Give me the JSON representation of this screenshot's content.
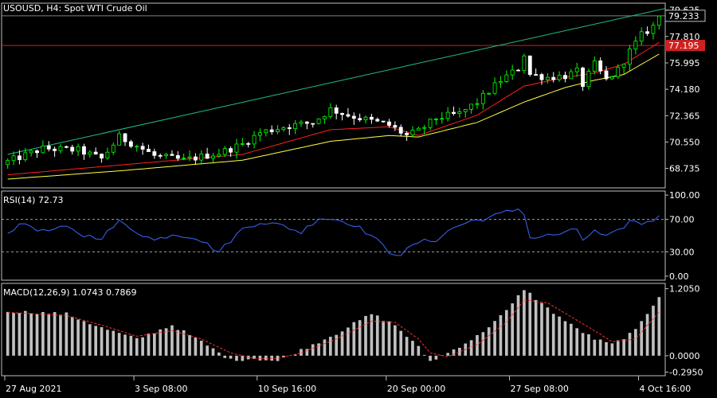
{
  "header": {
    "symbol": "USOUSD",
    "timeframe": "H4",
    "description": "Spot WTI Crude Oil",
    "label": "USOUSD, H4:  Spot WTI Crude Oil"
  },
  "rsi_panel": {
    "label": "RSI(14) 72.73"
  },
  "macd_panel": {
    "label": "MACD(12,26,9) 1.0743 0.7869"
  },
  "colors": {
    "background": "#000000",
    "bull_candle": "#00ff00",
    "bear_candle": "#ffffff",
    "ma_fast": "#ff2020",
    "ma_slow": "#ffff40",
    "trendline": "#20c080",
    "horizontal_line": "#d02020",
    "rsi_line": "#3a66ff",
    "macd_hist": "#c0c0c0",
    "macd_signal": "#ff3030",
    "grid_frame": "#c0c0c0"
  },
  "chart_data": [
    {
      "type": "candlestick",
      "title": "USOUSD, H4:  Spot WTI Crude Oil",
      "y_ticks": [
        "79.625",
        "77.810",
        "75.995",
        "74.180",
        "72.365",
        "70.550",
        "68.735"
      ],
      "ylim": [
        67.4,
        80.1
      ],
      "current_price": "79.233",
      "horizontal_level": "77.195",
      "x_labels": [
        "27 Aug 2021",
        "3 Sep 08:00",
        "10 Sep 16:00",
        "20 Sep 00:00",
        "27 Sep 08:00",
        "4 Oct 16:00"
      ],
      "bars": 112,
      "close_path": [
        [
          0,
          69.2
        ],
        [
          6,
          70.1
        ],
        [
          12,
          70.0
        ],
        [
          16,
          69.4
        ],
        [
          19,
          70.9
        ],
        [
          22,
          70.3
        ],
        [
          25,
          69.6
        ],
        [
          30,
          69.3
        ],
        [
          36,
          69.8
        ],
        [
          40,
          70.4
        ],
        [
          43,
          71.2
        ],
        [
          47,
          71.6
        ],
        [
          52,
          71.9
        ],
        [
          55,
          72.8
        ],
        [
          58,
          72.4
        ],
        [
          61,
          72.1
        ],
        [
          65,
          71.7
        ],
        [
          68,
          71.0
        ],
        [
          70,
          71.3
        ],
        [
          73,
          72.2
        ],
        [
          77,
          72.5
        ],
        [
          80,
          73.3
        ],
        [
          84,
          74.8
        ],
        [
          87,
          75.6
        ],
        [
          88,
          76.6
        ],
        [
          89,
          75.2
        ],
        [
          92,
          75.0
        ],
        [
          95,
          75.1
        ],
        [
          97,
          75.4
        ],
        [
          98,
          74.5
        ],
        [
          100,
          75.9
        ],
        [
          102,
          74.8
        ],
        [
          104,
          75.5
        ],
        [
          106,
          76.8
        ],
        [
          108,
          77.9
        ],
        [
          110,
          78.5
        ],
        [
          111,
          79.23
        ]
      ],
      "trendline": {
        "from": [
          0,
          69.7
        ],
        "to": [
          115,
          80.0
        ]
      },
      "moving_averages": [
        {
          "name": "MA fast",
          "path": [
            [
              0,
              68.3
            ],
            [
              20,
              69.0
            ],
            [
              40,
              69.7
            ],
            [
              55,
              71.4
            ],
            [
              65,
              71.6
            ],
            [
              70,
              71.0
            ],
            [
              80,
              72.4
            ],
            [
              88,
              74.4
            ],
            [
              95,
              75.0
            ],
            [
              100,
              75.3
            ],
            [
              105,
              75.9
            ],
            [
              111,
              77.4
            ]
          ]
        },
        {
          "name": "MA slow",
          "path": [
            [
              0,
              68.0
            ],
            [
              20,
              68.6
            ],
            [
              40,
              69.3
            ],
            [
              55,
              70.6
            ],
            [
              65,
              71.0
            ],
            [
              70,
              70.9
            ],
            [
              80,
              71.9
            ],
            [
              88,
              73.3
            ],
            [
              95,
              74.3
            ],
            [
              100,
              74.8
            ],
            [
              105,
              75.2
            ],
            [
              111,
              76.6
            ]
          ]
        }
      ]
    },
    {
      "type": "line",
      "title": "RSI(14) 72.73",
      "y_ticks": [
        "100.00",
        "70.00",
        "30.00",
        "0.00"
      ],
      "ylim": [
        -5,
        105
      ],
      "levels": [
        70,
        30
      ],
      "path": [
        [
          0,
          55
        ],
        [
          3,
          65
        ],
        [
          6,
          55
        ],
        [
          10,
          60
        ],
        [
          13,
          50
        ],
        [
          16,
          48
        ],
        [
          19,
          67
        ],
        [
          22,
          55
        ],
        [
          25,
          44
        ],
        [
          28,
          52
        ],
        [
          32,
          48
        ],
        [
          36,
          30
        ],
        [
          40,
          58
        ],
        [
          43,
          67
        ],
        [
          47,
          62
        ],
        [
          50,
          54
        ],
        [
          53,
          72
        ],
        [
          56,
          70
        ],
        [
          59,
          64
        ],
        [
          62,
          50
        ],
        [
          65,
          30
        ],
        [
          67,
          27
        ],
        [
          70,
          42
        ],
        [
          73,
          45
        ],
        [
          76,
          60
        ],
        [
          79,
          68
        ],
        [
          82,
          72
        ],
        [
          85,
          79
        ],
        [
          87,
          83
        ],
        [
          88,
          78
        ],
        [
          89,
          47
        ],
        [
          92,
          50
        ],
        [
          95,
          53
        ],
        [
          97,
          58
        ],
        [
          98,
          45
        ],
        [
          100,
          55
        ],
        [
          102,
          48
        ],
        [
          104,
          55
        ],
        [
          106,
          68
        ],
        [
          108,
          65
        ],
        [
          110,
          70
        ],
        [
          111,
          72.73
        ]
      ]
    },
    {
      "type": "bar",
      "title": "MACD(12,26,9) 1.0743 0.7869",
      "y_ticks": [
        "1.2050",
        "0.0000",
        "-0.2950"
      ],
      "ylim": [
        -0.36,
        1.3
      ],
      "histogram_path": [
        [
          0,
          0.8
        ],
        [
          10,
          0.75
        ],
        [
          16,
          0.5
        ],
        [
          22,
          0.3
        ],
        [
          28,
          0.55
        ],
        [
          33,
          0.25
        ],
        [
          38,
          -0.08
        ],
        [
          42,
          -0.05
        ],
        [
          46,
          -0.1
        ],
        [
          50,
          0.1
        ],
        [
          56,
          0.4
        ],
        [
          62,
          0.75
        ],
        [
          66,
          0.55
        ],
        [
          70,
          0.15
        ],
        [
          72,
          -0.1
        ],
        [
          75,
          0.05
        ],
        [
          80,
          0.35
        ],
        [
          85,
          0.8
        ],
        [
          88,
          1.2
        ],
        [
          92,
          0.85
        ],
        [
          96,
          0.55
        ],
        [
          100,
          0.3
        ],
        [
          103,
          0.2
        ],
        [
          107,
          0.45
        ],
        [
          111,
          1.0743
        ]
      ],
      "signal_path": [
        [
          0,
          0.78
        ],
        [
          10,
          0.72
        ],
        [
          16,
          0.55
        ],
        [
          22,
          0.35
        ],
        [
          28,
          0.45
        ],
        [
          33,
          0.3
        ],
        [
          38,
          0.05
        ],
        [
          42,
          -0.05
        ],
        [
          46,
          -0.05
        ],
        [
          50,
          0.05
        ],
        [
          56,
          0.3
        ],
        [
          62,
          0.62
        ],
        [
          66,
          0.6
        ],
        [
          70,
          0.3
        ],
        [
          72,
          0.05
        ],
        [
          75,
          -0.02
        ],
        [
          80,
          0.2
        ],
        [
          85,
          0.6
        ],
        [
          88,
          1.0
        ],
        [
          92,
          0.95
        ],
        [
          96,
          0.7
        ],
        [
          100,
          0.45
        ],
        [
          103,
          0.25
        ],
        [
          107,
          0.3
        ],
        [
          111,
          0.7869
        ]
      ]
    }
  ]
}
